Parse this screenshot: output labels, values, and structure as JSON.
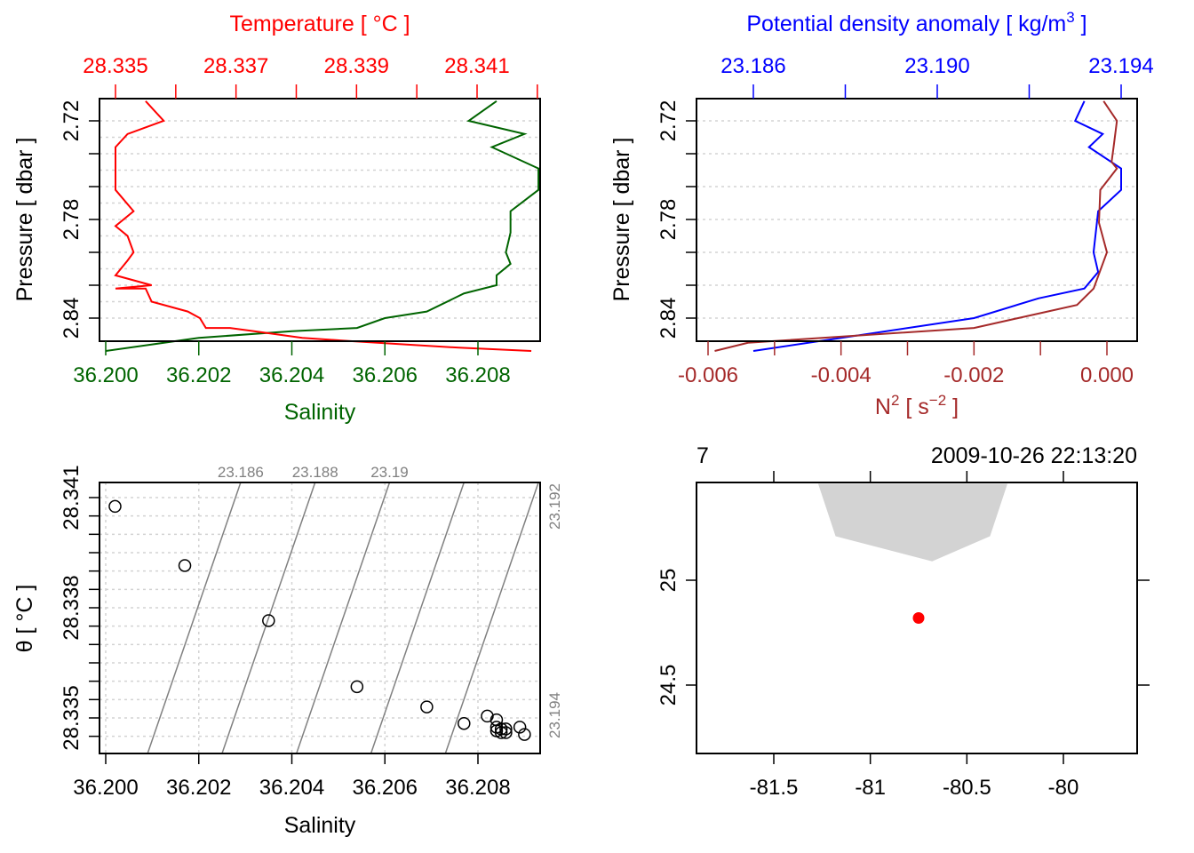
{
  "chart_data": [
    {
      "type": "line",
      "panel": "profile-TS",
      "title_top": "Temperature [ °C ]",
      "xlabel_bottom": "Salinity",
      "ylabel": "Pressure [ dbar ]",
      "top_axis": {
        "label": "Temperature [ °C ]",
        "ticks": [
          28.335,
          28.336,
          28.337,
          28.338,
          28.339,
          28.34,
          28.341,
          28.342
        ],
        "tick_labels": [
          "28.335",
          "28.337",
          "28.339",
          "28.341"
        ],
        "labeled_values": [
          28.335,
          28.337,
          28.339,
          28.341
        ],
        "color": "#ff0000",
        "range": [
          28.3348,
          28.3419
        ]
      },
      "bottom_axis": {
        "label": "Salinity",
        "ticks": [
          36.2,
          36.202,
          36.204,
          36.206,
          36.208
        ],
        "tick_labels": [
          "36.200",
          "36.202",
          "36.204",
          "36.206",
          "36.208"
        ],
        "color": "#006400",
        "range": [
          36.1998,
          36.2093
        ]
      },
      "y_axis": {
        "ticks": [
          2.72,
          2.73,
          2.74,
          2.75,
          2.76,
          2.77,
          2.78,
          2.79,
          2.8,
          2.81,
          2.82,
          2.83,
          2.84
        ],
        "grid_ticks": [
          2.72,
          2.74,
          2.76,
          2.78,
          2.8,
          2.82,
          2.84
        ],
        "tick_labels": [
          "2.72",
          "2.78",
          "2.84"
        ],
        "labeled_values": [
          2.72,
          2.78,
          2.84
        ],
        "range": [
          2.866,
          2.702
        ]
      },
      "grid": true,
      "series": [
        {
          "name": "Temperature",
          "color": "#ff0000",
          "x": [
            28.3355,
            28.3358,
            28.3352,
            28.335,
            28.335,
            28.335,
            28.335,
            28.3353,
            28.335,
            28.3352,
            28.3353,
            28.3352,
            28.335,
            28.3356,
            28.335,
            28.3355,
            28.3356,
            28.3362,
            28.3364,
            28.3365,
            28.3369,
            28.3373,
            28.3381,
            28.3389,
            28.3398,
            28.3407,
            28.3419
          ],
          "y": [
            2.708,
            2.72,
            2.728,
            2.736,
            2.749,
            2.76,
            2.762,
            2.775,
            2.784,
            2.79,
            2.8,
            2.805,
            2.814,
            2.82,
            2.822,
            2.822,
            2.83,
            2.836,
            2.84,
            2.846,
            2.846,
            2.848,
            2.852,
            2.854,
            2.856,
            2.858,
            2.86
          ]
        },
        {
          "name": "Salinity",
          "color": "#006400",
          "x": [
            36.2084,
            36.2078,
            36.209,
            36.2083,
            36.2093,
            36.2093,
            36.2087,
            36.2087,
            36.2086,
            36.2087,
            36.2084,
            36.2084,
            36.2077,
            36.2069,
            36.206,
            36.2054,
            36.204,
            36.202,
            36.2
          ],
          "y": [
            2.708,
            2.72,
            2.728,
            2.736,
            2.749,
            2.762,
            2.775,
            2.788,
            2.8,
            2.807,
            2.814,
            2.82,
            2.825,
            2.836,
            2.84,
            2.846,
            2.848,
            2.852,
            2.86
          ]
        }
      ]
    },
    {
      "type": "line",
      "panel": "profile-density-N2",
      "top_axis": {
        "label_main": "Potential density anomaly [ kg/m",
        "label_sup": "3",
        "label_end": " ]",
        "ticks": [
          23.186,
          23.188,
          23.19,
          23.192,
          23.194
        ],
        "tick_labels": [
          "23.186",
          "23.190",
          "23.194"
        ],
        "labeled_values": [
          23.186,
          23.19,
          23.194
        ],
        "color": "#0000ff",
        "range": [
          23.1832,
          23.1952
        ]
      },
      "bottom_axis": {
        "label_main": "N",
        "label_sup1": "2",
        "label_mid": " [ s",
        "label_sup2": "−2",
        "label_end": " ]",
        "ticks": [
          -0.006,
          -0.005,
          -0.004,
          -0.003,
          -0.002,
          -0.001,
          0.0
        ],
        "tick_labels": [
          "-0.006",
          "-0.004",
          "-0.002",
          "0.000"
        ],
        "labeled_values": [
          -0.006,
          -0.004,
          -0.002,
          0.0
        ],
        "color": "#a52a2a",
        "range": [
          -0.00617,
          0.00045
        ]
      },
      "ylabel": "Pressure [ dbar ]",
      "y_axis": {
        "tick_labels": [
          "2.72",
          "2.78",
          "2.84"
        ],
        "labeled_values": [
          2.72,
          2.78,
          2.84
        ]
      },
      "grid": true,
      "series": [
        {
          "name": "Potential density anomaly",
          "color": "#0000ff",
          "x": [
            23.1932,
            23.193,
            23.1936,
            23.1933,
            23.194,
            23.194,
            23.1935,
            23.1934,
            23.1935,
            23.1932,
            23.1922,
            23.1908,
            23.186
          ],
          "y": [
            2.708,
            2.72,
            2.728,
            2.736,
            2.749,
            2.762,
            2.775,
            2.8,
            2.812,
            2.822,
            2.828,
            2.84,
            2.86
          ]
        },
        {
          "name": "N2",
          "color": "#a52a2a",
          "x": [
            -5e-05,
            0.00015,
            0.0001,
            7e-05,
            0.00015,
            -0.0001,
            -0.00012,
            0.0,
            -0.0002,
            -0.00045,
            -0.002,
            -0.0054,
            -0.0059
          ],
          "y": [
            2.708,
            2.72,
            2.736,
            2.745,
            2.749,
            2.762,
            2.782,
            2.8,
            2.822,
            2.832,
            2.846,
            2.855,
            2.86
          ]
        }
      ]
    },
    {
      "type": "scatter",
      "panel": "TS-diagram",
      "xlabel": "Salinity",
      "ylabel": "θ [ °C ]",
      "x_axis": {
        "ticks": [
          36.2,
          36.202,
          36.204,
          36.206,
          36.208
        ],
        "tick_labels": [
          "36.200",
          "36.202",
          "36.204",
          "36.206",
          "36.208"
        ],
        "range": [
          36.1998,
          36.2093
        ]
      },
      "y_axis": {
        "ticks": [
          28.3345,
          28.335,
          28.3355,
          28.336,
          28.3365,
          28.337,
          28.3375,
          28.338,
          28.3385,
          28.339,
          28.3395,
          28.34,
          28.3405,
          28.341
        ],
        "tick_labels": [
          "28.335",
          "28.338",
          "28.341"
        ],
        "labeled_values": [
          28.335,
          28.338,
          28.341
        ],
        "range": [
          28.3344,
          28.34115
        ]
      },
      "grid": true,
      "isopycnals": [
        {
          "label": "23.186",
          "sigma": 23.186,
          "label_pos": "top"
        },
        {
          "label": "23.188",
          "sigma": 23.188,
          "label_pos": "top"
        },
        {
          "label": "23.19",
          "sigma": 23.19,
          "label_pos": "top"
        },
        {
          "label": "23.192",
          "sigma": 23.192,
          "label_pos": "right"
        },
        {
          "label": "23.194",
          "sigma": 23.194,
          "label_pos": "right"
        }
      ],
      "isopycnal_color": "#808080",
      "points": {
        "x": [
          36.2002,
          36.2017,
          36.2035,
          36.2054,
          36.2069,
          36.2077,
          36.2082,
          36.2084,
          36.2084,
          36.2084,
          36.2085,
          36.2085,
          36.2086,
          36.2086,
          36.2089,
          36.209
        ],
        "y": [
          28.34076,
          28.33915,
          28.33765,
          28.33585,
          28.3353,
          28.33485,
          28.33505,
          28.33495,
          28.33475,
          28.33465,
          28.3347,
          28.3346,
          28.3347,
          28.3346,
          28.33475,
          28.33455
        ]
      }
    },
    {
      "type": "scatter",
      "panel": "map",
      "top_labels": {
        "left": "7",
        "right": "2009-10-26 22:13:20"
      },
      "x_axis": {
        "ticks": [
          -81.5,
          -81.0,
          -80.5,
          -80.0
        ],
        "tick_labels": [
          "-81.5",
          "-81",
          "-80.5",
          "-80"
        ],
        "range": [
          -81.9,
          -79.62
        ]
      },
      "y_axis": {
        "ticks": [
          24.5,
          25.0
        ],
        "tick_labels": [
          "24.5",
          "25"
        ],
        "range": [
          24.22,
          25.46
        ]
      },
      "land_color": "#d3d3d3",
      "land_polygon": {
        "lon": [
          -81.27,
          -81.18,
          -80.68,
          -80.38,
          -80.29
        ],
        "lat": [
          25.46,
          25.21,
          25.09,
          25.21,
          25.46
        ]
      },
      "station": {
        "lon": -80.75,
        "lat": 24.82,
        "color": "#ff0000"
      }
    }
  ]
}
